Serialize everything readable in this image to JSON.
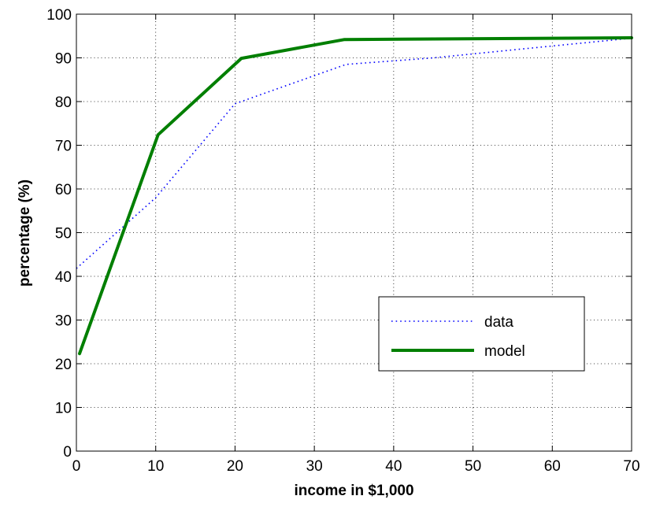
{
  "chart_data": {
    "type": "line",
    "title": "",
    "xlabel": "income in $1,000",
    "ylabel": "percentage (%)",
    "xlim": [
      0,
      70
    ],
    "ylim": [
      0,
      100
    ],
    "xticks": [
      0,
      10,
      20,
      30,
      40,
      50,
      60,
      70
    ],
    "yticks": [
      0,
      10,
      20,
      30,
      40,
      50,
      60,
      70,
      80,
      90,
      100
    ],
    "grid": true,
    "legend_position": "lower-right",
    "series": [
      {
        "name": "data",
        "style": "dotted",
        "color": "#0000ff",
        "x": [
          0,
          10,
          20,
          34,
          45,
          56,
          70
        ],
        "y": [
          41.8,
          58,
          79.5,
          88.5,
          90,
          92,
          94.5
        ]
      },
      {
        "name": "model",
        "style": "solid",
        "color": "#007f00",
        "x": [
          0.4,
          10.3,
          20.8,
          33.8,
          70
        ],
        "y": [
          22.3,
          72.4,
          89.9,
          94.2,
          94.6
        ]
      }
    ]
  }
}
